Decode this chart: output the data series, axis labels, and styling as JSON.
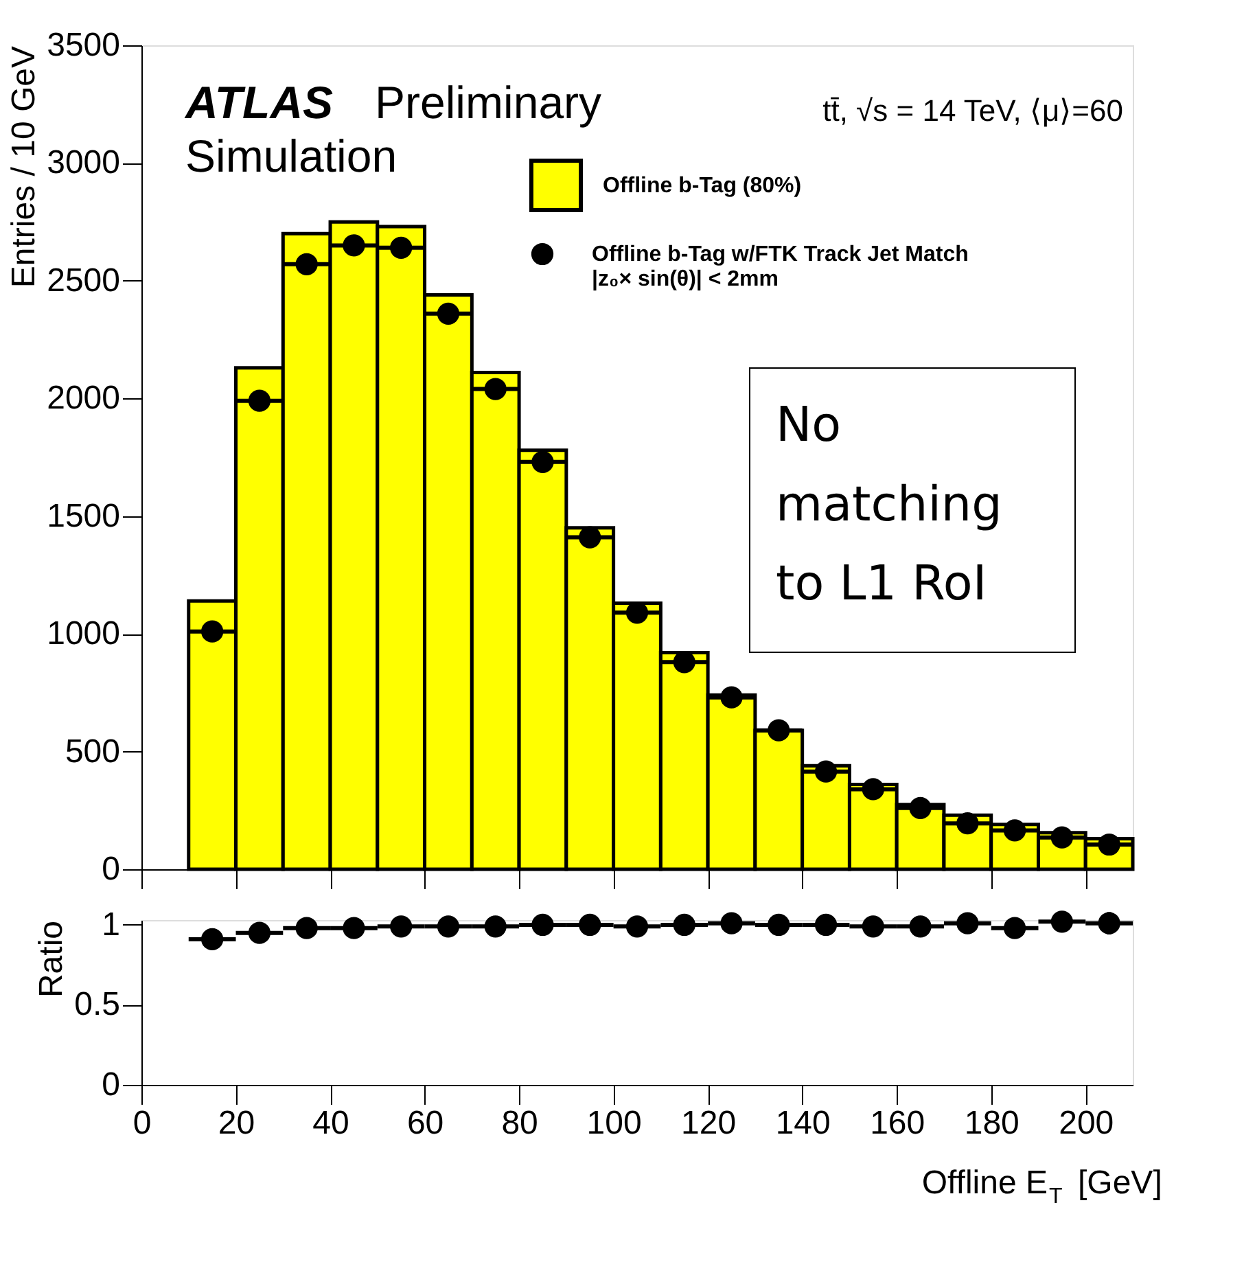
{
  "chart_data": [
    {
      "type": "histogram",
      "ylabel": "Entries / 10 GeV",
      "xlim": [
        0,
        210
      ],
      "xticks": [
        0,
        20,
        40,
        60,
        80,
        100,
        120,
        140,
        160,
        180,
        200
      ],
      "ylim": [
        0,
        3500
      ],
      "yticks": [
        0,
        500,
        1000,
        1500,
        2000,
        2500,
        3000,
        3500
      ],
      "tick_labels": "y",
      "grid": false,
      "legend": "top right",
      "bins": [
        0,
        10,
        20,
        30,
        40,
        50,
        60,
        70,
        80,
        90,
        100,
        110,
        120,
        130,
        140,
        150,
        160,
        170,
        180,
        190,
        200,
        210
      ],
      "annotations": [
        "ATLAS",
        "Preliminary",
        "Simulation",
        "tt̄, √s = 14 TeV, ⟨μ⟩=60",
        "No\nmatching\nto L1 RoI"
      ],
      "series": [
        {
          "name": "Offline b-Tag (80%)",
          "type": "histogram",
          "color": "#ffff00",
          "values": [
            0,
            1140,
            2130,
            2700,
            2750,
            2730,
            2440,
            2110,
            1780,
            1450,
            1130,
            920,
            740,
            590,
            440,
            360,
            275,
            230,
            190,
            155,
            130
          ]
        },
        {
          "name": "Offline b-Tag w/FTK Track Jet Match\n|z₀× sin(θ)| < 2mm",
          "type": "scatter",
          "marker": "circle",
          "color": "#000000",
          "x": [
            15,
            25,
            35,
            45,
            55,
            65,
            75,
            85,
            95,
            105,
            115,
            125,
            135,
            145,
            155,
            165,
            175,
            185,
            195,
            205
          ],
          "values": [
            1010,
            1990,
            2570,
            2650,
            2640,
            2360,
            2040,
            1730,
            1410,
            1090,
            880,
            730,
            590,
            415,
            340,
            260,
            195,
            165,
            135,
            105
          ],
          "xerrors": [
            5,
            5,
            5,
            5,
            5,
            5,
            5,
            5,
            5,
            5,
            5,
            5,
            5,
            5,
            5,
            5,
            5,
            5,
            5,
            5
          ]
        }
      ]
    },
    {
      "type": "scatter",
      "ylabel": "Ratio",
      "xlabel": "Offline E$_{T}$ [GeV]",
      "xlim": [
        0,
        210
      ],
      "xticks": [
        0,
        20,
        40,
        60,
        80,
        100,
        120,
        140,
        160,
        180,
        200
      ],
      "ylim": [
        0,
        1.03
      ],
      "yticks": [
        0,
        0.5,
        1
      ],
      "grid": false,
      "marker": "circle",
      "series": [
        {
          "color": "#000000",
          "x": [
            15,
            25,
            35,
            45,
            55,
            65,
            75,
            85,
            95,
            105,
            115,
            125,
            135,
            145,
            155,
            165,
            175,
            185,
            195,
            205
          ],
          "values": [
            0.91,
            0.95,
            0.98,
            0.98,
            0.99,
            0.99,
            0.99,
            1.0,
            1.0,
            0.99,
            1.0,
            1.01,
            1.0,
            1.0,
            0.99,
            0.99,
            1.01,
            0.98,
            1.02,
            1.01
          ],
          "xerrors": [
            5,
            5,
            5,
            5,
            5,
            5,
            5,
            5,
            5,
            5,
            5,
            5,
            5,
            5,
            5,
            5,
            5,
            5,
            5,
            5
          ],
          "errors": [
            null,
            null,
            null,
            null,
            null,
            null,
            null,
            null,
            null,
            null,
            null,
            null,
            null,
            0.02,
            0.03,
            0.03,
            0.04,
            0.05,
            0.06,
            0.07
          ]
        }
      ]
    }
  ]
}
